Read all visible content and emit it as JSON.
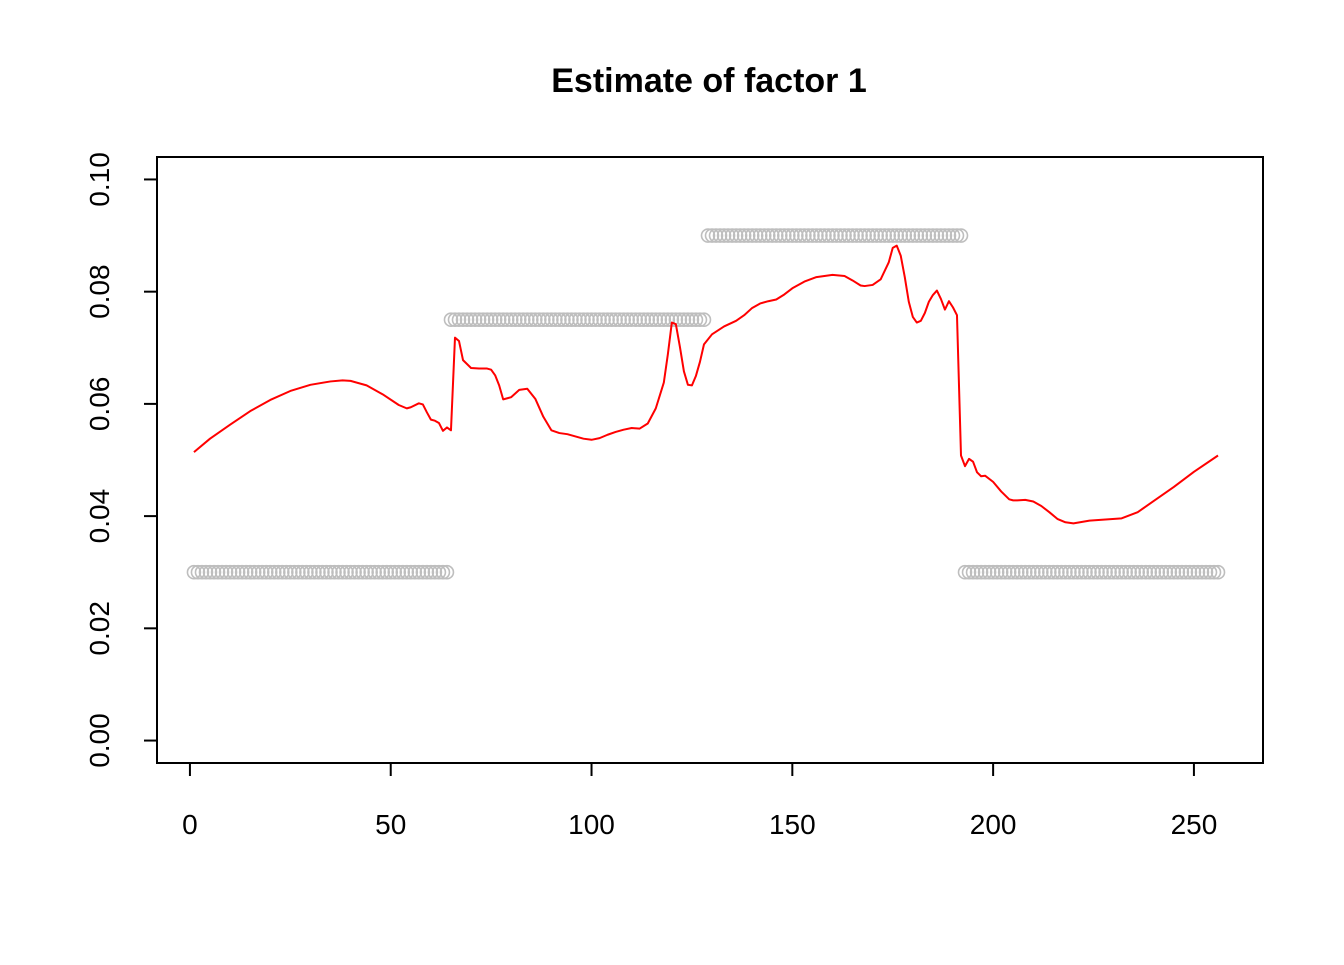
{
  "chart_data": {
    "type": "line",
    "title": "Estimate of factor 1",
    "xlabel": "",
    "ylabel": "",
    "xlim": [
      -8.2,
      267.2
    ],
    "ylim": [
      -0.004,
      0.104
    ],
    "x_ticks": [
      0,
      50,
      100,
      150,
      200,
      250
    ],
    "y_ticks": [
      0.0,
      0.02,
      0.04,
      0.06,
      0.08,
      0.1
    ],
    "x_tick_labels": [
      "0",
      "50",
      "100",
      "150",
      "200",
      "250"
    ],
    "y_tick_labels": [
      "0.00",
      "0.02",
      "0.04",
      "0.06",
      "0.08",
      "0.10"
    ],
    "grid": false,
    "legend": "none",
    "series": [
      {
        "kind": "points",
        "marker": "open-circle",
        "color": "#BEBEBE",
        "x_range": [
          1,
          256
        ],
        "segments": [
          {
            "x_start": 1,
            "x_end": 64,
            "y": 0.03
          },
          {
            "x_start": 65,
            "x_end": 128,
            "y": 0.075
          },
          {
            "x_start": 129,
            "x_end": 192,
            "y": 0.09
          },
          {
            "x_start": 193,
            "x_end": 256,
            "y": 0.03
          }
        ]
      },
      {
        "kind": "line",
        "color": "#FF0000",
        "x": [
          1,
          5,
          10,
          15,
          20,
          25,
          30,
          35,
          38,
          40,
          44,
          48,
          52,
          54,
          55,
          57,
          58,
          59,
          60,
          61,
          62,
          63,
          64,
          65,
          66,
          67,
          68,
          70,
          72,
          74,
          75,
          76,
          77,
          78,
          80,
          82,
          84,
          86,
          88,
          90,
          92,
          94,
          96,
          98,
          100,
          102,
          104,
          106,
          108,
          110,
          112,
          114,
          116,
          118,
          119,
          120,
          121,
          122,
          123,
          124,
          125,
          126,
          127,
          128,
          130,
          133,
          136,
          138,
          140,
          142,
          144,
          146,
          148,
          150,
          153,
          156,
          160,
          163,
          165,
          167,
          168,
          170,
          172,
          174,
          175,
          176,
          177,
          178,
          179,
          180,
          181,
          182,
          183,
          184,
          185,
          186,
          187,
          188,
          189,
          190,
          191,
          192,
          193,
          194,
          195,
          196,
          197,
          198,
          200,
          202,
          204,
          205,
          206,
          208,
          210,
          212,
          214,
          216,
          218,
          220,
          224,
          228,
          232,
          236,
          240,
          245,
          250,
          256
        ],
        "y": [
          0.0514,
          0.0538,
          0.0563,
          0.0587,
          0.0607,
          0.0623,
          0.0634,
          0.064,
          0.0642,
          0.0641,
          0.0633,
          0.0617,
          0.0598,
          0.0592,
          0.0594,
          0.0601,
          0.0599,
          0.0585,
          0.0572,
          0.057,
          0.0566,
          0.0552,
          0.0558,
          0.0553,
          0.0718,
          0.0712,
          0.0678,
          0.0664,
          0.0663,
          0.0663,
          0.0661,
          0.0651,
          0.0633,
          0.0608,
          0.0612,
          0.0625,
          0.0627,
          0.0609,
          0.0577,
          0.0553,
          0.0548,
          0.0546,
          0.0542,
          0.0538,
          0.0536,
          0.0539,
          0.0545,
          0.055,
          0.0554,
          0.0557,
          0.0556,
          0.0565,
          0.0592,
          0.0638,
          0.0688,
          0.0745,
          0.0742,
          0.0702,
          0.0658,
          0.0634,
          0.0633,
          0.065,
          0.0675,
          0.0706,
          0.0724,
          0.0738,
          0.0748,
          0.0758,
          0.0771,
          0.0779,
          0.0783,
          0.0786,
          0.0795,
          0.0806,
          0.0818,
          0.0826,
          0.083,
          0.0828,
          0.082,
          0.0811,
          0.081,
          0.0812,
          0.0822,
          0.0852,
          0.0878,
          0.0882,
          0.0864,
          0.0826,
          0.0782,
          0.0755,
          0.0745,
          0.0748,
          0.0762,
          0.0782,
          0.0794,
          0.0802,
          0.0787,
          0.0768,
          0.0783,
          0.0772,
          0.0758,
          0.0508,
          0.0489,
          0.0502,
          0.0497,
          0.0478,
          0.0471,
          0.0472,
          0.0461,
          0.0444,
          0.043,
          0.0428,
          0.0428,
          0.0429,
          0.0426,
          0.0418,
          0.0407,
          0.0395,
          0.0389,
          0.0387,
          0.0392,
          0.0394,
          0.0396,
          0.0407,
          0.0427,
          0.0452,
          0.0479,
          0.0508
        ]
      }
    ]
  }
}
